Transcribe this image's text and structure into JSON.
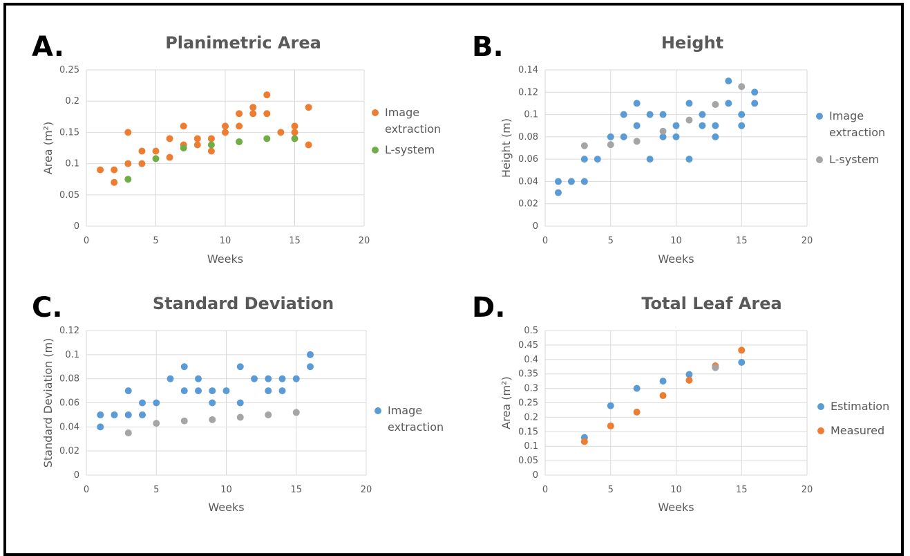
{
  "panel_letters": [
    "A.",
    "B.",
    "C.",
    "D."
  ],
  "colors": {
    "image_extraction_A": "#ed7d31",
    "lsystem_A": "#70ad47",
    "blue": "#5b9bd5",
    "gray": "#a5a5a5",
    "orange": "#ed7d31",
    "grid": "#d9d9d9",
    "text": "#595959"
  },
  "chart_data": [
    {
      "type": "scatter",
      "title": "Planimetric Area",
      "xlabel": "Weeks",
      "ylabel": "Area (m²)",
      "xlim": [
        0,
        20
      ],
      "ylim": [
        0,
        0.25
      ],
      "xticks": [
        "0",
        "5",
        "10",
        "15",
        "20"
      ],
      "yticks": [
        "0",
        "0.05",
        "0.1",
        "0.15",
        "0.2",
        "0.25"
      ],
      "grid": true,
      "legend_position": "right",
      "series": [
        {
          "name": "Image extraction",
          "color": "#ed7d31",
          "points": [
            [
              1,
              0.09
            ],
            [
              2,
              0.09
            ],
            [
              2,
              0.07
            ],
            [
              3,
              0.15
            ],
            [
              3,
              0.1
            ],
            [
              4,
              0.12
            ],
            [
              4,
              0.1
            ],
            [
              5,
              0.12
            ],
            [
              6,
              0.14
            ],
            [
              6,
              0.11
            ],
            [
              7,
              0.16
            ],
            [
              7,
              0.13
            ],
            [
              8,
              0.14
            ],
            [
              8,
              0.13
            ],
            [
              9,
              0.14
            ],
            [
              9,
              0.12
            ],
            [
              10,
              0.16
            ],
            [
              10,
              0.15
            ],
            [
              11,
              0.18
            ],
            [
              11,
              0.16
            ],
            [
              12,
              0.19
            ],
            [
              12,
              0.18
            ],
            [
              13,
              0.21
            ],
            [
              13,
              0.18
            ],
            [
              14,
              0.15
            ],
            [
              15,
              0.16
            ],
            [
              15,
              0.15
            ],
            [
              16,
              0.19
            ],
            [
              16,
              0.13
            ]
          ]
        },
        {
          "name": "L-system",
          "color": "#70ad47",
          "points": [
            [
              3,
              0.075
            ],
            [
              5,
              0.108
            ],
            [
              7,
              0.125
            ],
            [
              9,
              0.13
            ],
            [
              11,
              0.135
            ],
            [
              13,
              0.14
            ],
            [
              15,
              0.14
            ]
          ]
        }
      ]
    },
    {
      "type": "scatter",
      "title": "Height",
      "xlabel": "Weeks",
      "ylabel": "Height (m)",
      "xlim": [
        0,
        20
      ],
      "ylim": [
        0,
        0.14
      ],
      "xticks": [
        "0",
        "5",
        "10",
        "15",
        "20"
      ],
      "yticks": [
        "0",
        "0.02",
        "0.04",
        "0.06",
        "0.08",
        "0.1",
        "0.12",
        "0.14"
      ],
      "grid": true,
      "legend_position": "right",
      "series": [
        {
          "name": "Image extraction",
          "color": "#5b9bd5",
          "points": [
            [
              1,
              0.04
            ],
            [
              1,
              0.03
            ],
            [
              2,
              0.04
            ],
            [
              3,
              0.06
            ],
            [
              3,
              0.04
            ],
            [
              4,
              0.06
            ],
            [
              5,
              0.08
            ],
            [
              6,
              0.1
            ],
            [
              6,
              0.08
            ],
            [
              7,
              0.11
            ],
            [
              7,
              0.09
            ],
            [
              8,
              0.1
            ],
            [
              8,
              0.06
            ],
            [
              9,
              0.1
            ],
            [
              9,
              0.08
            ],
            [
              10,
              0.09
            ],
            [
              10,
              0.08
            ],
            [
              11,
              0.11
            ],
            [
              11,
              0.06
            ],
            [
              12,
              0.1
            ],
            [
              12,
              0.09
            ],
            [
              13,
              0.09
            ],
            [
              13,
              0.08
            ],
            [
              14,
              0.13
            ],
            [
              14,
              0.11
            ],
            [
              15,
              0.1
            ],
            [
              15,
              0.09
            ],
            [
              16,
              0.12
            ],
            [
              16,
              0.11
            ]
          ]
        },
        {
          "name": "L-system",
          "color": "#a5a5a5",
          "points": [
            [
              3,
              0.072
            ],
            [
              5,
              0.073
            ],
            [
              7,
              0.076
            ],
            [
              9,
              0.085
            ],
            [
              11,
              0.095
            ],
            [
              13,
              0.109
            ],
            [
              15,
              0.125
            ]
          ]
        }
      ]
    },
    {
      "type": "scatter",
      "title": "Standard Deviation",
      "xlabel": "Weeks",
      "ylabel": "Standard Deviation (m)",
      "xlim": [
        0,
        20
      ],
      "ylim": [
        0,
        0.12
      ],
      "xticks": [
        "0",
        "5",
        "10",
        "15",
        "20"
      ],
      "yticks": [
        "0",
        "0.02",
        "0.04",
        "0.06",
        "0.08",
        "0.1",
        "0.12"
      ],
      "grid": true,
      "legend_position": "right",
      "series": [
        {
          "name": "Image extraction",
          "color": "#5b9bd5",
          "points": [
            [
              1,
              0.05
            ],
            [
              1,
              0.04
            ],
            [
              2,
              0.05
            ],
            [
              3,
              0.07
            ],
            [
              3,
              0.05
            ],
            [
              4,
              0.06
            ],
            [
              4,
              0.05
            ],
            [
              5,
              0.06
            ],
            [
              6,
              0.08
            ],
            [
              7,
              0.09
            ],
            [
              7,
              0.07
            ],
            [
              8,
              0.08
            ],
            [
              8,
              0.07
            ],
            [
              9,
              0.07
            ],
            [
              9,
              0.06
            ],
            [
              10,
              0.07
            ],
            [
              11,
              0.09
            ],
            [
              11,
              0.06
            ],
            [
              12,
              0.08
            ],
            [
              13,
              0.08
            ],
            [
              13,
              0.07
            ],
            [
              14,
              0.08
            ],
            [
              14,
              0.07
            ],
            [
              15,
              0.08
            ],
            [
              16,
              0.1
            ],
            [
              16,
              0.09
            ]
          ]
        },
        {
          "name": "",
          "color": "#a5a5a5",
          "points": [
            [
              3,
              0.035
            ],
            [
              5,
              0.043
            ],
            [
              7,
              0.045
            ],
            [
              9,
              0.046
            ],
            [
              11,
              0.048
            ],
            [
              13,
              0.05
            ],
            [
              15,
              0.052
            ]
          ]
        }
      ]
    },
    {
      "type": "scatter",
      "title": "Total Leaf Area",
      "xlabel": "Weeks",
      "ylabel": "Area (m²)",
      "xlim": [
        0,
        20
      ],
      "ylim": [
        0,
        0.5
      ],
      "xticks": [
        "0",
        "5",
        "10",
        "15",
        "20"
      ],
      "yticks": [
        "0",
        "0.05",
        "0.1",
        "0.15",
        "0.2",
        "0.25",
        "0.3",
        "0.35",
        "0.4",
        "0.45",
        "0.5"
      ],
      "grid": true,
      "legend_position": "right",
      "series": [
        {
          "name": "Estimation",
          "color": "#5b9bd5",
          "points": [
            [
              3,
              0.13
            ],
            [
              5,
              0.24
            ],
            [
              7,
              0.3
            ],
            [
              9,
              0.325
            ],
            [
              11,
              0.348
            ],
            [
              13,
              0.372
            ],
            [
              15,
              0.39
            ]
          ]
        },
        {
          "name": "Measured",
          "color": "#ed7d31",
          "points": [
            [
              3,
              0.116
            ],
            [
              5,
              0.17
            ],
            [
              7,
              0.218
            ],
            [
              9,
              0.275
            ],
            [
              11,
              0.328
            ],
            [
              13,
              0.378
            ],
            [
              15,
              0.432
            ]
          ]
        },
        {
          "name": "",
          "color": "#a5a5a5",
          "points": [
            [
              13,
              0.372
            ]
          ]
        }
      ]
    }
  ]
}
